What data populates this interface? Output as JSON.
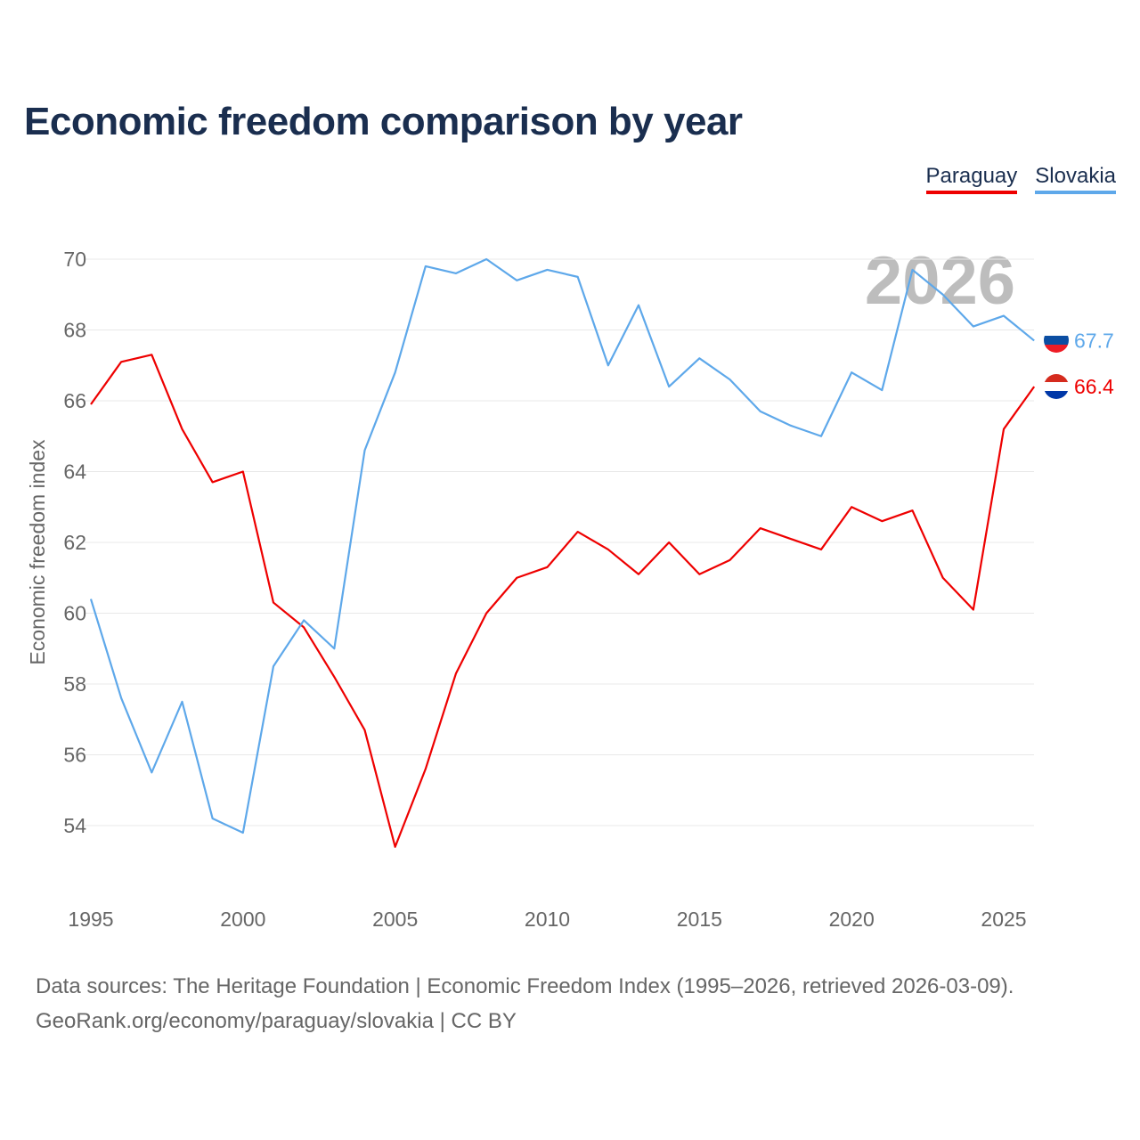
{
  "chart_data": {
    "type": "line",
    "title": "Economic freedom comparison by year",
    "xlabel": "",
    "ylabel": "Economic freedom index",
    "xlim": [
      1995,
      2026
    ],
    "ylim": [
      52.3,
      71
    ],
    "yticks": [
      54,
      56,
      58,
      60,
      62,
      64,
      66,
      68,
      70
    ],
    "xticks": [
      1995,
      2000,
      2005,
      2010,
      2015,
      2020,
      2025
    ],
    "grid": true,
    "legend_position": "top-right",
    "watermark_year": "2026",
    "x": [
      1995,
      1996,
      1997,
      1998,
      1999,
      2000,
      2001,
      2002,
      2003,
      2004,
      2005,
      2006,
      2007,
      2008,
      2009,
      2010,
      2011,
      2012,
      2013,
      2014,
      2015,
      2016,
      2017,
      2018,
      2019,
      2020,
      2021,
      2022,
      2023,
      2024,
      2025,
      2026
    ],
    "series": [
      {
        "name": "Paraguay",
        "color": "#ee0000",
        "end_label": "66.4",
        "values": [
          65.9,
          67.1,
          67.3,
          65.2,
          63.7,
          64.0,
          60.3,
          59.6,
          58.2,
          56.7,
          53.4,
          55.6,
          58.3,
          60.0,
          61.0,
          61.3,
          62.3,
          61.8,
          61.1,
          62.0,
          61.1,
          61.5,
          62.4,
          62.1,
          61.8,
          63.0,
          62.6,
          62.9,
          61.0,
          60.1,
          65.2,
          66.4
        ]
      },
      {
        "name": "Slovakia",
        "color": "#5ea8ea",
        "end_label": "67.7",
        "values": [
          60.4,
          57.6,
          55.5,
          57.5,
          54.2,
          53.8,
          58.5,
          59.8,
          59.0,
          64.6,
          66.8,
          69.8,
          69.6,
          70.0,
          69.4,
          69.7,
          69.5,
          67.0,
          68.7,
          66.4,
          67.2,
          66.6,
          65.7,
          65.3,
          65.0,
          66.8,
          66.3,
          69.7,
          69.0,
          68.1,
          68.4,
          67.7
        ]
      }
    ]
  },
  "footer": {
    "line1": "Data sources: The Heritage Foundation | Economic Freedom Index (1995–2026, retrieved 2026-03-09).",
    "line2": "GeoRank.org/economy/paraguay/slovakia | CC BY"
  }
}
